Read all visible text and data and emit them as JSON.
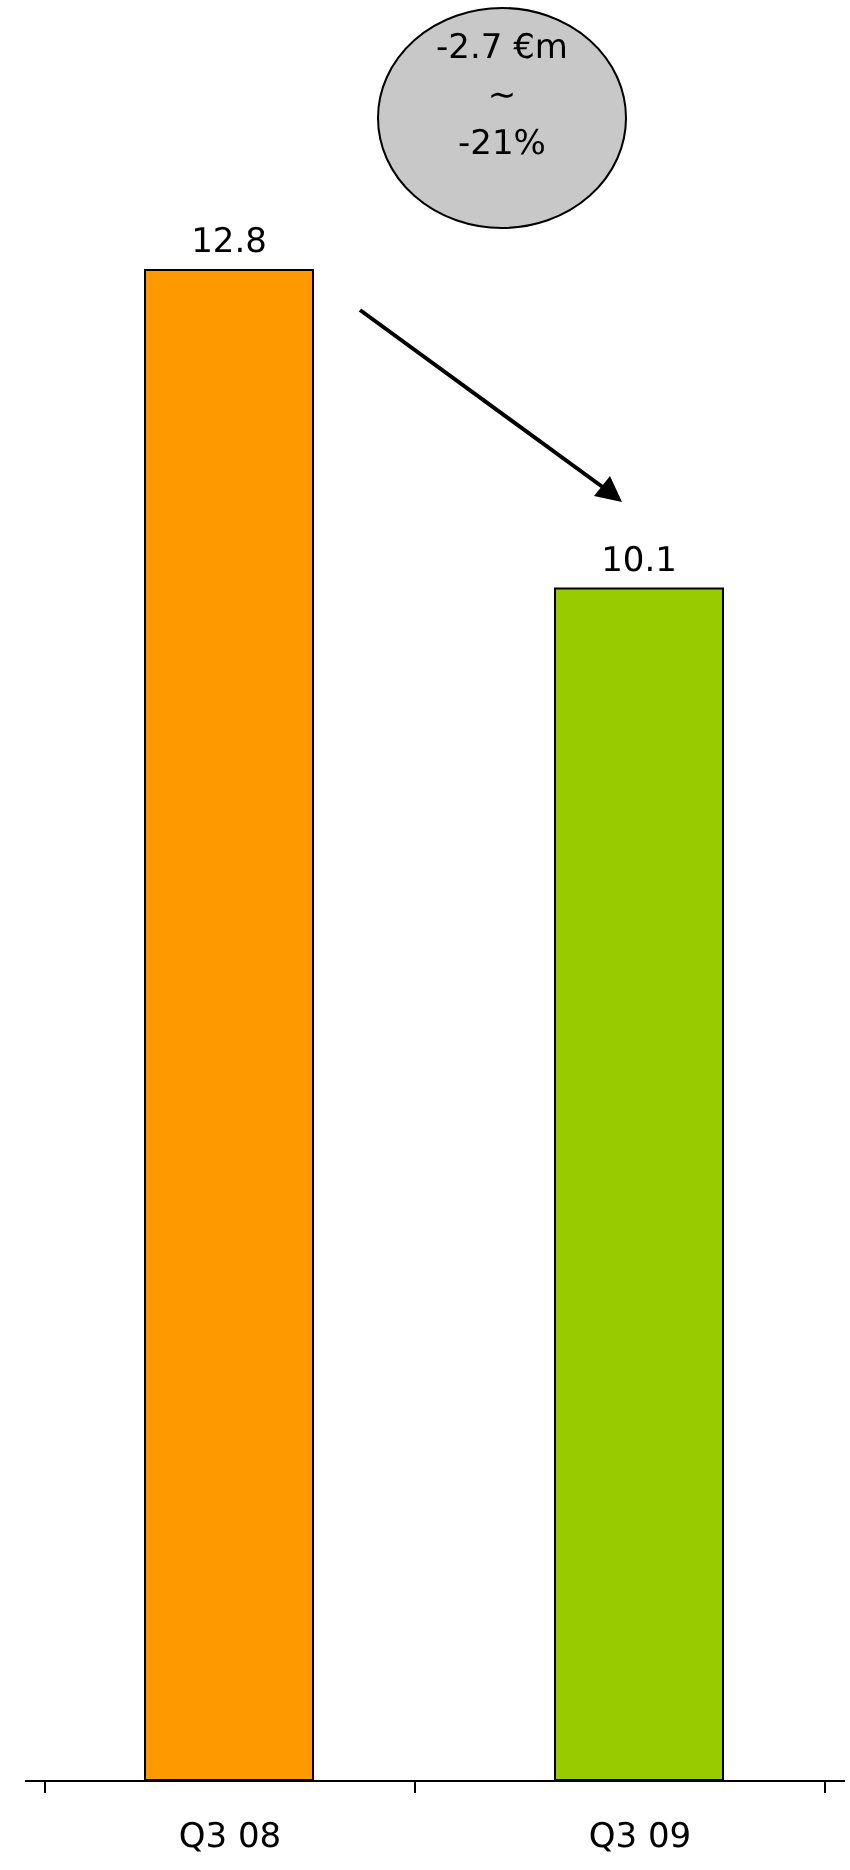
{
  "chart_data": {
    "type": "bar",
    "categories": [
      "Q3 08",
      "Q3 09"
    ],
    "values": [
      12.8,
      10.1
    ],
    "colors": [
      "#ff9900",
      "#99cc00"
    ],
    "data_labels": true,
    "annotations": [
      "-2.7 €m",
      "~",
      "-21%"
    ]
  }
}
